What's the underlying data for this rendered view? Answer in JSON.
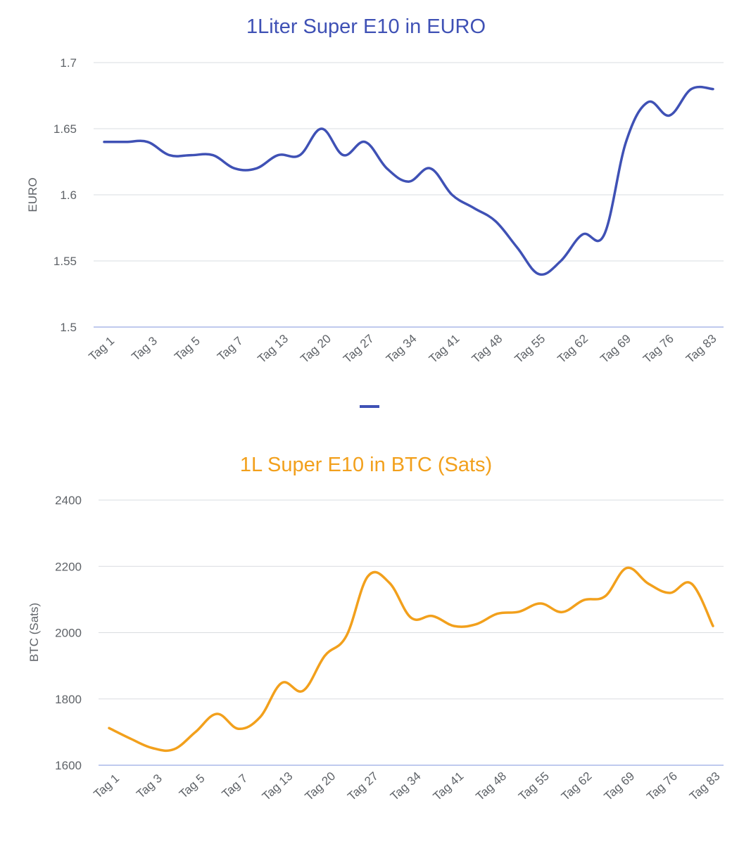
{
  "colors": {
    "euro": "#3f51b5",
    "btc": "#f2a01c",
    "grid": "#dadce0",
    "baseline": "#aab8e8",
    "text": "#5f6368"
  },
  "chart_data": [
    {
      "type": "line",
      "title": "1Liter Super E10 in EURO",
      "ylabel": "EURO",
      "xlabel": "",
      "ylim": [
        1.5,
        1.7
      ],
      "yticks": [
        "1.5",
        "1.55",
        "1.6",
        "1.65",
        "1.7"
      ],
      "x_tick_labels": [
        "Tag 1",
        "Tag 3",
        "Tag 5",
        "Tag 7",
        "Tag 13",
        "Tag 20",
        "Tag 27",
        "Tag 34",
        "Tag 41",
        "Tag 48",
        "Tag 55",
        "Tag 62",
        "Tag 69",
        "Tag 76",
        "Tag 83"
      ],
      "legend": "bottom",
      "grid": true,
      "series": [
        {
          "values": [
            1.64,
            1.64,
            1.64,
            1.63,
            1.63,
            1.63,
            1.62,
            1.62,
            1.63,
            1.63,
            1.65,
            1.63,
            1.64,
            1.62,
            1.61,
            1.62,
            1.6,
            1.59,
            1.58,
            1.56,
            1.54,
            1.55,
            1.57,
            1.57,
            1.64,
            1.67,
            1.66,
            1.68,
            1.68
          ]
        }
      ]
    },
    {
      "type": "line",
      "title": "1L Super E10 in BTC (Sats)",
      "ylabel": "BTC (Sats)",
      "xlabel": "",
      "ylim": [
        1600,
        2400
      ],
      "yticks": [
        "1600",
        "1800",
        "2000",
        "2200",
        "2400"
      ],
      "x_tick_labels": [
        "Tag 1",
        "Tag 3",
        "Tag 5",
        "Tag 7",
        "Tag 13",
        "Tag 20",
        "Tag 27",
        "Tag 34",
        "Tag 41",
        "Tag 48",
        "Tag 55",
        "Tag 62",
        "Tag 69",
        "Tag 76",
        "Tag 83"
      ],
      "grid": true,
      "series": [
        {
          "values": [
            1712,
            1680,
            1652,
            1648,
            1700,
            1755,
            1710,
            1745,
            1848,
            1825,
            1930,
            1990,
            2170,
            2150,
            2045,
            2050,
            2020,
            2025,
            2057,
            2063,
            2088,
            2062,
            2098,
            2110,
            2195,
            2148,
            2120,
            2148,
            2020
          ]
        }
      ]
    }
  ]
}
